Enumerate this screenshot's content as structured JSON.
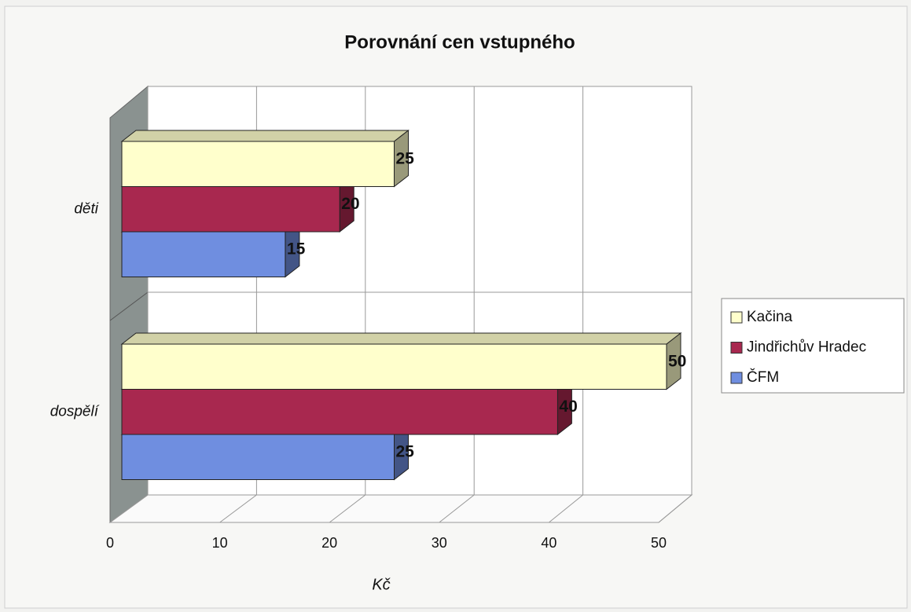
{
  "chart_data": {
    "type": "bar3d_horizontal",
    "title": "Porovnání cen vstupného",
    "x_label": "Kč",
    "categories": [
      "děti",
      "dospělí"
    ],
    "series": [
      {
        "name": "Kačina",
        "color": "#ffffcc",
        "values": [
          25,
          50
        ]
      },
      {
        "name": "Jindřichův Hradec",
        "color": "#a8284f",
        "values": [
          20,
          40
        ]
      },
      {
        "name": "ČFM",
        "color": "#6f8ee0",
        "values": [
          15,
          25
        ]
      }
    ],
    "xlim": [
      0,
      50
    ],
    "xticks": [
      0,
      10,
      20,
      30,
      40,
      50
    ],
    "grid": true,
    "legend": "right"
  }
}
